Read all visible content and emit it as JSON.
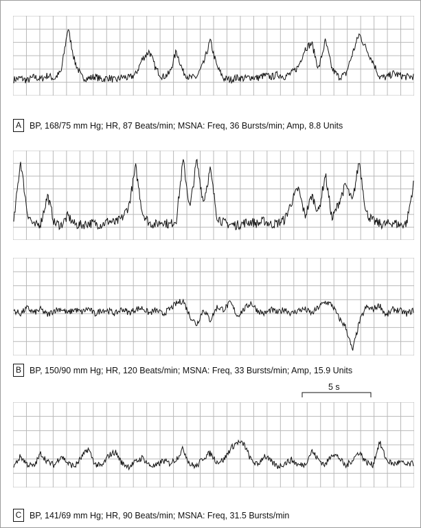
{
  "panels": [
    {
      "letter": "A",
      "caption": "BP, 168/75 mm Hg; HR, 87 Beats/min; MSNA: Freq, 36 Bursts/min; Amp, 8.8 Units"
    },
    {
      "letter": "B",
      "caption": "BP, 150/90 mm Hg; HR, 120 Beats/min; MSNA: Freq, 33 Bursts/min; Amp, 15.9 Units"
    },
    {
      "letter": "C",
      "caption": "BP, 141/69 mm Hg; HR, 90 Beats/min; MSNA: Freq, 31.5 Bursts/min"
    }
  ],
  "scale_bar": {
    "label": "5 s",
    "duration_s": 5
  },
  "colors": {
    "grid": "#b8b8b8",
    "trace": "#111111",
    "border": "#9a9a9a"
  },
  "chart_data": [
    {
      "type": "line",
      "title": "",
      "series": [
        {
          "values": [
            0,
            0.03,
            -0.02,
            0.05,
            0.01,
            0.08,
            0.02,
            0.15,
            1.0,
            0.35,
            0.05,
            0.02,
            0.06,
            0,
            0.04,
            -0.02,
            0.05,
            0.03,
            0.1,
            0.4,
            0.55,
            0.2,
            0.05,
            0.12,
            0.55,
            0.15,
            0.03,
            0.05,
            0.3,
            0.75,
            0.25,
            0.02,
            0,
            0.04,
            0.02,
            0.05,
            0.03,
            0.08,
            0.05,
            0.1,
            0.06,
            0.12,
            0.25,
            0.6,
            0.7,
            0.2,
            0.75,
            0.2,
            0.05,
            0.1,
            0.5,
            0.88,
            0.6,
            0.35,
            0.05,
            0.04,
            0.12,
            0.08,
            0.05,
            0.06
          ]
        }
      ],
      "xlabel": "",
      "ylabel": ""
    },
    {
      "type": "line",
      "title": "",
      "series": [
        {
          "values": [
            0.05,
            0.95,
            0.2,
            0,
            0.05,
            0.45,
            0.05,
            0.02,
            0.15,
            0.03,
            0.02,
            0.05,
            0.04,
            0.03,
            0.08,
            0.05,
            0.12,
            0.3,
            0.85,
            0.2,
            0.05,
            0.03,
            0.08,
            0.02,
            0.1,
            0.95,
            0.25,
            0.95,
            0.35,
            0.82,
            0.15,
            0.05,
            0.03,
            0.02,
            0.05,
            0.07,
            0.04,
            0.08,
            0.03,
            0.05,
            0.1,
            0.35,
            0.55,
            0.15,
            0.45,
            0.2,
            0.75,
            0.1,
            0.35,
            0.6,
            0.35,
            0.95,
            0.2,
            0.08,
            0.04,
            0.03,
            0.06,
            0.02,
            0.05,
            0.6
          ]
        }
      ],
      "xlabel": "",
      "ylabel": ""
    },
    {
      "type": "line",
      "title": "",
      "series": [
        {
          "values": [
            0.02,
            -0.05,
            0.08,
            -0.03,
            0.05,
            -0.08,
            0.03,
            0.06,
            -0.04,
            0.05,
            -0.02,
            0.07,
            -0.06,
            0.04,
            0.02,
            -0.05,
            0.06,
            -0.03,
            0.05,
            0.08,
            -0.04,
            0.03,
            -0.06,
            0.05,
            0.18,
            0.25,
            -0.1,
            -0.3,
            0.05,
            -0.2,
            0.1,
            0.05,
            0.2,
            -0.1,
            0.05,
            0.2,
            0.02,
            -0.05,
            0.04,
            -0.03,
            0.06,
            -0.05,
            0.03,
            0.05,
            -0.05,
            0.1,
            0.22,
            0.15,
            -0.15,
            -0.35,
            -0.9,
            -0.25,
            0.1,
            0.05,
            0.15,
            -0.1,
            0.05,
            0.02,
            -0.05,
            0.03
          ]
        }
      ],
      "xlabel": "",
      "ylabel": ""
    },
    {
      "type": "line",
      "title": "",
      "series": [
        {
          "values": [
            0.05,
            0.28,
            0.1,
            0.05,
            0.35,
            0.15,
            0.08,
            0.3,
            0.12,
            0.05,
            0.25,
            0.45,
            0.1,
            0.05,
            0.3,
            0.38,
            0.12,
            0.05,
            0.15,
            0.25,
            0.08,
            0.05,
            0.18,
            0.12,
            0.22,
            0.45,
            0.1,
            0.05,
            0.25,
            0.35,
            0.15,
            0.2,
            0.45,
            0.6,
            0.55,
            0.2,
            0.08,
            0.3,
            0.15,
            0.05,
            0.12,
            0.2,
            0.08,
            0.1,
            0.4,
            0.2,
            0.08,
            0.35,
            0.25,
            0.05,
            0.2,
            0.38,
            0.15,
            0.08,
            0.6,
            0.2,
            0.1,
            0.15,
            0.08,
            0.12
          ]
        }
      ],
      "xlabel": "",
      "ylabel": ""
    }
  ]
}
